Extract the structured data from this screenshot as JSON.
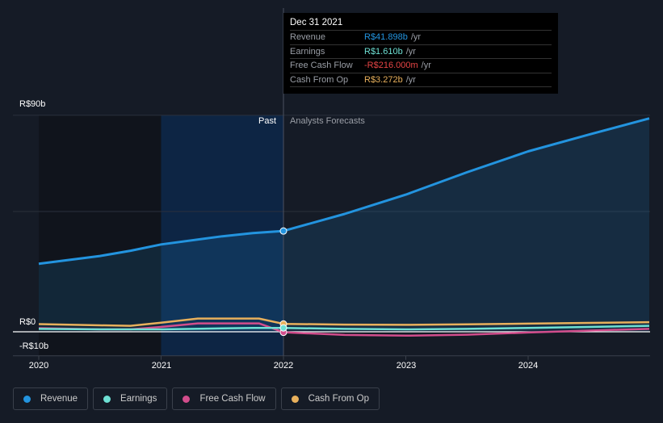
{
  "chart_data": {
    "type": "line",
    "xlim": [
      2019.99,
      2024.99
    ],
    "ylim": [
      -10,
      90
    ],
    "y_ticks": [
      {
        "value": 90,
        "label": "R$90b"
      },
      {
        "value": 0,
        "label": "R$0"
      },
      {
        "value": -10,
        "label": "-R$10b"
      }
    ],
    "x_ticks": [
      {
        "value": 2020,
        "label": "2020"
      },
      {
        "value": 2021,
        "label": "2021"
      },
      {
        "value": 2022,
        "label": "2022"
      },
      {
        "value": 2023,
        "label": "2023"
      },
      {
        "value": 2024,
        "label": "2024"
      }
    ],
    "past_label": "Past",
    "forecast_label": "Analysts Forecasts",
    "divider_x": 2022,
    "series": [
      {
        "name": "Revenue",
        "color": "#2394df",
        "x": [
          2020,
          2020.5,
          2020.75,
          2021,
          2021.5,
          2021.75,
          2022,
          2022.5,
          2023,
          2023.5,
          2024,
          2024.5,
          2024.99
        ],
        "values": [
          28.3,
          31.5,
          33.7,
          36.3,
          39.7,
          41,
          41.9,
          49,
          57,
          66.3,
          75,
          82,
          88.7
        ]
      },
      {
        "name": "Earnings",
        "color": "#6ee0d4",
        "x": [
          2020,
          2020.5,
          2021,
          2021.5,
          2021.75,
          2022,
          2022.5,
          2023,
          2023.5,
          2024,
          2024.5,
          2024.99
        ],
        "values": [
          1.2,
          1,
          1,
          1.4,
          1.6,
          1.61,
          1.2,
          1,
          1.2,
          1.6,
          2,
          2.5
        ]
      },
      {
        "name": "Free Cash Flow",
        "color": "#d24d8c",
        "x": [
          2020,
          2020.5,
          2020.75,
          2021,
          2021.3,
          2021.8,
          2022,
          2022.5,
          2023,
          2023.5,
          2024,
          2024.5,
          2024.99
        ],
        "values": [
          1.5,
          1,
          1,
          2,
          3.5,
          3.5,
          -0.216,
          -1.3,
          -1.6,
          -1.2,
          -0.3,
          0.5,
          1.2
        ]
      },
      {
        "name": "Cash From Op",
        "color": "#e8b05c",
        "x": [
          2020,
          2020.5,
          2020.75,
          2021,
          2021.3,
          2021.8,
          2022,
          2022.5,
          2023,
          2023.5,
          2024,
          2024.5,
          2024.99
        ],
        "values": [
          3.2,
          2.7,
          2.5,
          3.8,
          5.5,
          5.5,
          3.272,
          3,
          2.9,
          3.1,
          3.4,
          3.7,
          4
        ]
      }
    ],
    "tooltip": {
      "date": "Dec 31 2021",
      "rows": [
        {
          "label": "Revenue",
          "value": "R$41.898b",
          "unit": "/yr",
          "color": "#2394df"
        },
        {
          "label": "Earnings",
          "value": "R$1.610b",
          "unit": "/yr",
          "color": "#6ee0d4"
        },
        {
          "label": "Free Cash Flow",
          "value": "-R$216.000m",
          "unit": "/yr",
          "color": "#e64545"
        },
        {
          "label": "Cash From Op",
          "value": "R$3.272b",
          "unit": "/yr",
          "color": "#e8b05c"
        }
      ]
    }
  }
}
